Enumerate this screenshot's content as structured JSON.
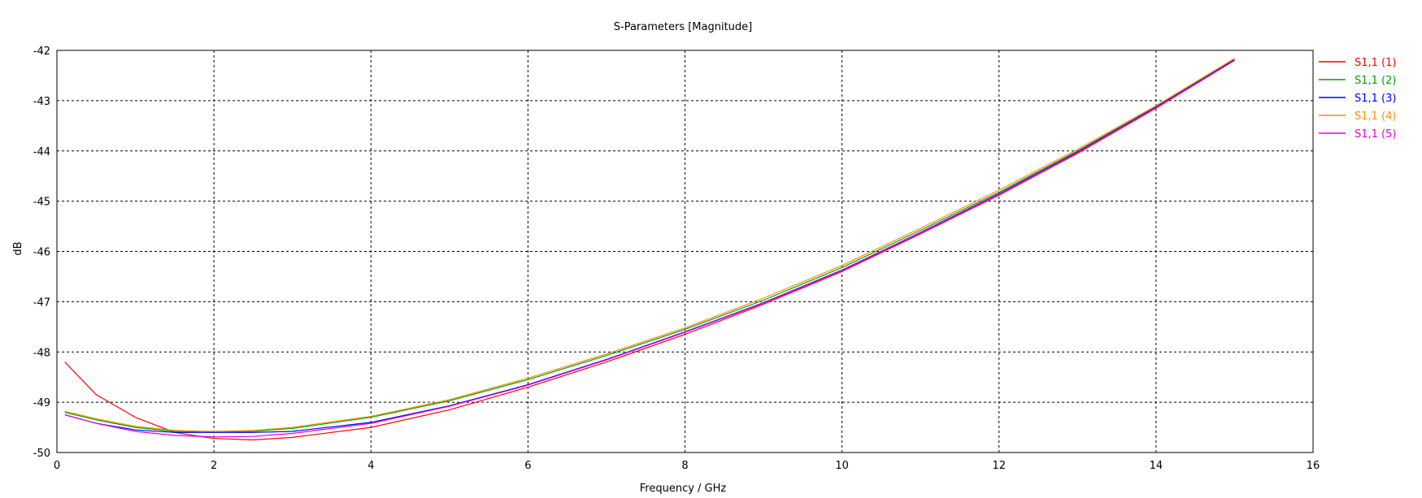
{
  "chart_data": {
    "type": "line",
    "title": "S-Parameters [Magnitude]",
    "xlabel": "Frequency / GHz",
    "ylabel": "dB",
    "xlim": [
      0,
      16
    ],
    "ylim": [
      -50,
      -42
    ],
    "xticks": [
      0,
      2,
      4,
      6,
      8,
      10,
      12,
      14,
      16
    ],
    "yticks": [
      -42,
      -43,
      -44,
      -45,
      -46,
      -47,
      -48,
      -49,
      -50
    ],
    "grid": true,
    "legend": "right",
    "series": [
      {
        "name": "S1,1 (1)",
        "color": "#ff0000",
        "x": [
          0.1,
          0.5,
          1,
          1.5,
          2,
          2.5,
          3,
          4,
          5,
          6,
          7,
          8,
          9,
          10,
          11,
          12,
          13,
          14,
          15
        ],
        "y": [
          -48.2,
          -48.85,
          -49.3,
          -49.6,
          -49.72,
          -49.75,
          -49.7,
          -49.5,
          -49.15,
          -48.7,
          -48.2,
          -47.65,
          -47.05,
          -46.4,
          -45.65,
          -44.88,
          -44.05,
          -43.15,
          -42.2
        ]
      },
      {
        "name": "S1,1 (2)",
        "color": "#00a000",
        "x": [
          0.1,
          0.5,
          1,
          1.5,
          2,
          2.5,
          3,
          4,
          5,
          6,
          7,
          8,
          9,
          10,
          11,
          12,
          13,
          14,
          15
        ],
        "y": [
          -49.2,
          -49.35,
          -49.5,
          -49.58,
          -49.6,
          -49.58,
          -49.52,
          -49.3,
          -48.97,
          -48.55,
          -48.07,
          -47.55,
          -46.97,
          -46.32,
          -45.58,
          -44.82,
          -44.0,
          -43.12,
          -42.18
        ]
      },
      {
        "name": "S1,1 (3)",
        "color": "#0000ff",
        "x": [
          0.1,
          0.5,
          1,
          1.5,
          2,
          2.5,
          3,
          4,
          5,
          6,
          7,
          8,
          9,
          10,
          11,
          12,
          13,
          14,
          15
        ],
        "y": [
          -49.25,
          -49.42,
          -49.55,
          -49.6,
          -49.6,
          -49.6,
          -49.58,
          -49.4,
          -49.07,
          -48.65,
          -48.15,
          -47.6,
          -47.02,
          -46.37,
          -45.62,
          -44.85,
          -44.02,
          -43.13,
          -42.19
        ]
      },
      {
        "name": "S1,1 (4)",
        "color": "#ff8c00",
        "x": [
          0.1,
          0.5,
          1,
          1.5,
          2,
          2.5,
          3,
          4,
          5,
          6,
          7,
          8,
          9,
          10,
          11,
          12,
          13,
          14,
          15
        ],
        "y": [
          -49.18,
          -49.33,
          -49.48,
          -49.56,
          -49.58,
          -49.56,
          -49.5,
          -49.28,
          -48.95,
          -48.52,
          -48.04,
          -47.52,
          -46.93,
          -46.28,
          -45.54,
          -44.78,
          -43.97,
          -43.1,
          -42.16
        ]
      },
      {
        "name": "S1,1 (5)",
        "color": "#e000e0",
        "x": [
          0.1,
          0.5,
          1,
          1.5,
          2,
          2.5,
          3,
          4,
          5,
          6,
          7,
          8,
          9,
          10,
          11,
          12,
          13,
          14,
          15
        ],
        "y": [
          -49.25,
          -49.42,
          -49.58,
          -49.66,
          -49.69,
          -49.68,
          -49.62,
          -49.42,
          -49.08,
          -48.66,
          -48.16,
          -47.61,
          -47.03,
          -46.38,
          -45.63,
          -44.86,
          -44.03,
          -43.14,
          -42.2
        ]
      }
    ]
  }
}
